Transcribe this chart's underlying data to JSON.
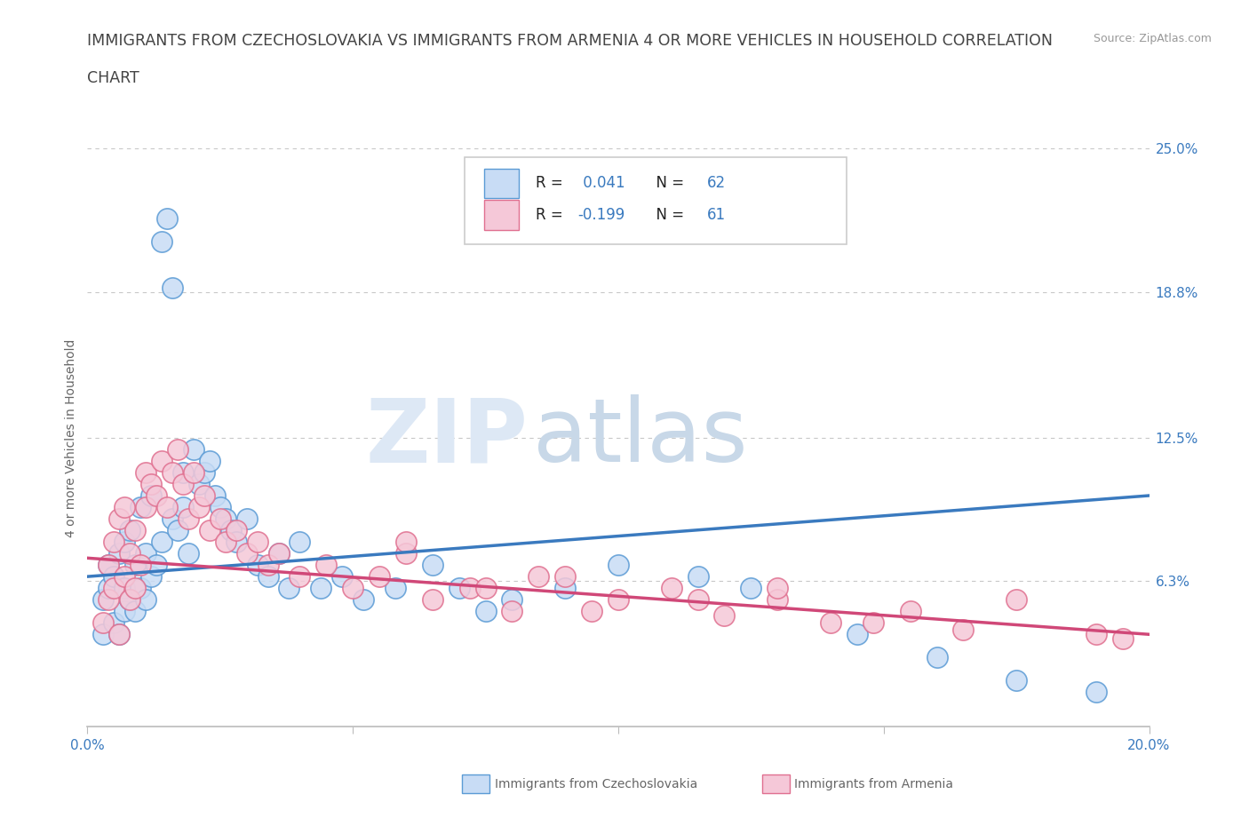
{
  "title_line1": "IMMIGRANTS FROM CZECHOSLOVAKIA VS IMMIGRANTS FROM ARMENIA 4 OR MORE VEHICLES IN HOUSEHOLD CORRELATION",
  "title_line2": "CHART",
  "source": "Source: ZipAtlas.com",
  "ylabel": "4 or more Vehicles in Household",
  "xlim": [
    0.0,
    0.2
  ],
  "ylim": [
    0.0,
    0.25
  ],
  "xticks": [
    0.0,
    0.05,
    0.1,
    0.15,
    0.2
  ],
  "xticklabels": [
    "0.0%",
    "",
    "",
    "",
    "20.0%"
  ],
  "ytick_positions": [
    0.0,
    0.063,
    0.125,
    0.188,
    0.25
  ],
  "ytick_labels": [
    "",
    "6.3%",
    "12.5%",
    "18.8%",
    "25.0%"
  ],
  "blue_fill": "#c8dcf5",
  "blue_edge": "#5b9bd5",
  "pink_fill": "#f5c8d8",
  "pink_edge": "#e07090",
  "blue_line_color": "#3a7abf",
  "pink_line_color": "#d04878",
  "legend_text_color": "#3a7abf",
  "blue_label": "Immigrants from Czechoslovakia",
  "pink_label": "Immigrants from Armenia",
  "blue_R": 0.041,
  "blue_N": 62,
  "pink_R": -0.199,
  "pink_N": 61,
  "watermark_zip": "ZIP",
  "watermark_atlas": "atlas",
  "grid_color": "#c8c8c8",
  "bg_color": "#ffffff",
  "title_fontsize": 12.5,
  "axis_label_fontsize": 10,
  "tick_fontsize": 11,
  "legend_fontsize": 12,
  "blue_trend_x0": 0.0,
  "blue_trend_y0": 0.065,
  "blue_trend_x1": 0.2,
  "blue_trend_y1": 0.1,
  "pink_trend_x0": 0.0,
  "pink_trend_y0": 0.073,
  "pink_trend_x1": 0.2,
  "pink_trend_y1": 0.04,
  "blue_scatter_x": [
    0.003,
    0.003,
    0.004,
    0.004,
    0.005,
    0.005,
    0.006,
    0.006,
    0.007,
    0.007,
    0.007,
    0.008,
    0.008,
    0.009,
    0.009,
    0.01,
    0.01,
    0.011,
    0.011,
    0.012,
    0.012,
    0.013,
    0.014,
    0.014,
    0.015,
    0.016,
    0.016,
    0.017,
    0.018,
    0.018,
    0.019,
    0.02,
    0.021,
    0.022,
    0.023,
    0.024,
    0.025,
    0.026,
    0.027,
    0.028,
    0.03,
    0.032,
    0.034,
    0.036,
    0.038,
    0.04,
    0.044,
    0.048,
    0.052,
    0.058,
    0.065,
    0.07,
    0.075,
    0.08,
    0.09,
    0.1,
    0.115,
    0.125,
    0.145,
    0.16,
    0.175,
    0.19
  ],
  "blue_scatter_y": [
    0.04,
    0.055,
    0.06,
    0.07,
    0.045,
    0.065,
    0.04,
    0.075,
    0.05,
    0.06,
    0.08,
    0.055,
    0.085,
    0.05,
    0.07,
    0.06,
    0.095,
    0.055,
    0.075,
    0.065,
    0.1,
    0.07,
    0.08,
    0.21,
    0.22,
    0.19,
    0.09,
    0.085,
    0.095,
    0.11,
    0.075,
    0.12,
    0.105,
    0.11,
    0.115,
    0.1,
    0.095,
    0.09,
    0.085,
    0.08,
    0.09,
    0.07,
    0.065,
    0.075,
    0.06,
    0.08,
    0.06,
    0.065,
    0.055,
    0.06,
    0.07,
    0.06,
    0.05,
    0.055,
    0.06,
    0.07,
    0.065,
    0.06,
    0.04,
    0.03,
    0.02,
    0.015
  ],
  "pink_scatter_x": [
    0.003,
    0.004,
    0.004,
    0.005,
    0.005,
    0.006,
    0.006,
    0.007,
    0.007,
    0.008,
    0.008,
    0.009,
    0.009,
    0.01,
    0.011,
    0.011,
    0.012,
    0.013,
    0.014,
    0.015,
    0.016,
    0.017,
    0.018,
    0.019,
    0.02,
    0.021,
    0.022,
    0.023,
    0.025,
    0.026,
    0.028,
    0.03,
    0.032,
    0.034,
    0.036,
    0.04,
    0.045,
    0.05,
    0.055,
    0.06,
    0.065,
    0.072,
    0.08,
    0.09,
    0.1,
    0.11,
    0.12,
    0.13,
    0.14,
    0.155,
    0.165,
    0.175,
    0.19,
    0.195,
    0.06,
    0.075,
    0.085,
    0.095,
    0.115,
    0.13,
    0.148
  ],
  "pink_scatter_y": [
    0.045,
    0.055,
    0.07,
    0.06,
    0.08,
    0.04,
    0.09,
    0.065,
    0.095,
    0.055,
    0.075,
    0.06,
    0.085,
    0.07,
    0.095,
    0.11,
    0.105,
    0.1,
    0.115,
    0.095,
    0.11,
    0.12,
    0.105,
    0.09,
    0.11,
    0.095,
    0.1,
    0.085,
    0.09,
    0.08,
    0.085,
    0.075,
    0.08,
    0.07,
    0.075,
    0.065,
    0.07,
    0.06,
    0.065,
    0.075,
    0.055,
    0.06,
    0.05,
    0.065,
    0.055,
    0.06,
    0.048,
    0.055,
    0.045,
    0.05,
    0.042,
    0.055,
    0.04,
    0.038,
    0.08,
    0.06,
    0.065,
    0.05,
    0.055,
    0.06,
    0.045
  ]
}
